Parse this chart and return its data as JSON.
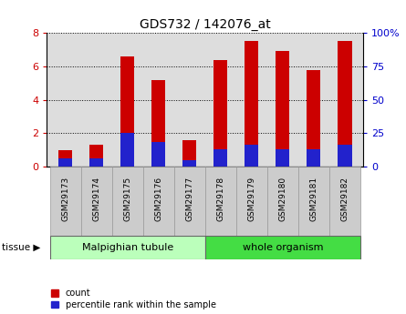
{
  "title": "GDS732 / 142076_at",
  "samples": [
    "GSM29173",
    "GSM29174",
    "GSM29175",
    "GSM29176",
    "GSM29177",
    "GSM29178",
    "GSM29179",
    "GSM29180",
    "GSM29181",
    "GSM29182"
  ],
  "count_values": [
    1.0,
    1.3,
    6.6,
    5.2,
    1.6,
    6.4,
    7.5,
    6.9,
    5.8,
    7.5
  ],
  "percentile_values": [
    6,
    6,
    25,
    18,
    5,
    13,
    16,
    13,
    13,
    16
  ],
  "ylim_left": [
    0,
    8
  ],
  "ylim_right": [
    0,
    100
  ],
  "yticks_left": [
    0,
    2,
    4,
    6,
    8
  ],
  "yticks_right": [
    0,
    25,
    50,
    75,
    100
  ],
  "bar_color_red": "#cc0000",
  "bar_color_blue": "#2222cc",
  "bar_width": 0.45,
  "tissue_groups": [
    {
      "label": "Malpighian tubule",
      "n": 5,
      "color": "#bbffbb"
    },
    {
      "label": "whole organism",
      "n": 5,
      "color": "#44dd44"
    }
  ],
  "legend_count_label": "count",
  "legend_pct_label": "percentile rank within the sample",
  "bg_color": "#ffffff",
  "plot_bg_color": "#dddddd",
  "tick_bg_color": "#cccccc",
  "title_fontsize": 10,
  "axis_color_left": "#cc0000",
  "axis_color_right": "#0000cc"
}
